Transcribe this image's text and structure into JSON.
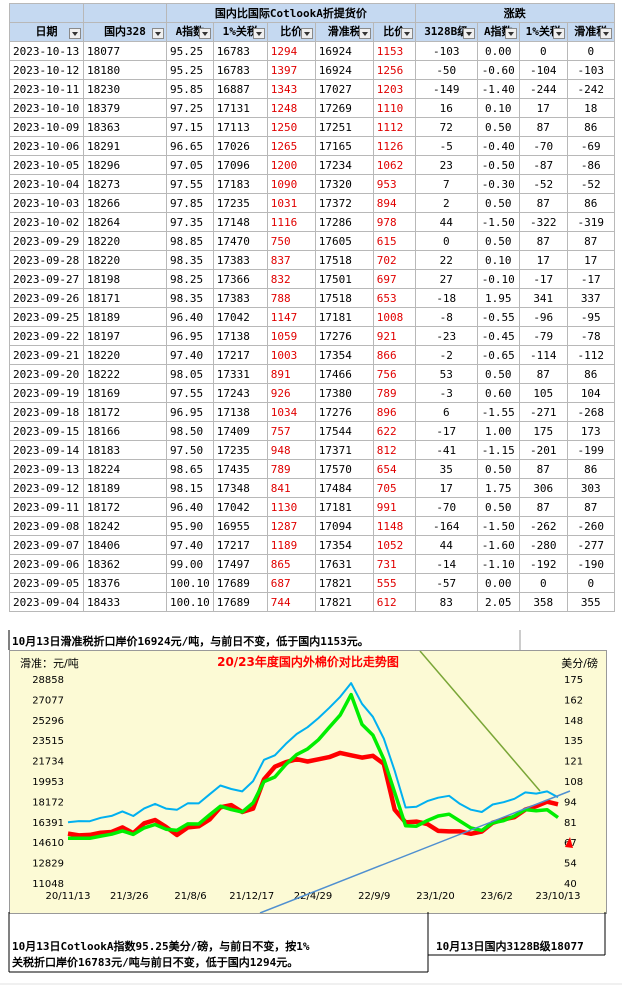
{
  "table": {
    "group_header_1": "国内比国际CotlookA折提货价",
    "group_header_2": "涨跌",
    "columns": [
      "日期",
      "国内328",
      "A指数",
      "1%关税",
      "比价",
      "滑准税",
      "比价",
      "3128B级",
      "A指数",
      "1%关税",
      "滑准税"
    ],
    "rows": [
      [
        "2023-10-13",
        "18077",
        "95.25",
        "16783",
        "1294",
        "16924",
        "1153",
        "-103",
        "0.00",
        "0",
        "0"
      ],
      [
        "2023-10-12",
        "18180",
        "95.25",
        "16783",
        "1397",
        "16924",
        "1256",
        "-50",
        "-0.60",
        "-104",
        "-103"
      ],
      [
        "2023-10-11",
        "18230",
        "95.85",
        "16887",
        "1343",
        "17027",
        "1203",
        "-149",
        "-1.40",
        "-244",
        "-242"
      ],
      [
        "2023-10-10",
        "18379",
        "97.25",
        "17131",
        "1248",
        "17269",
        "1110",
        "16",
        "0.10",
        "17",
        "18"
      ],
      [
        "2023-10-09",
        "18363",
        "97.15",
        "17113",
        "1250",
        "17251",
        "1112",
        "72",
        "0.50",
        "87",
        "86"
      ],
      [
        "2023-10-06",
        "18291",
        "96.65",
        "17026",
        "1265",
        "17165",
        "1126",
        "-5",
        "-0.40",
        "-70",
        "-69"
      ],
      [
        "2023-10-05",
        "18296",
        "97.05",
        "17096",
        "1200",
        "17234",
        "1062",
        "23",
        "-0.50",
        "-87",
        "-86"
      ],
      [
        "2023-10-04",
        "18273",
        "97.55",
        "17183",
        "1090",
        "17320",
        "953",
        "7",
        "-0.30",
        "-52",
        "-52"
      ],
      [
        "2023-10-03",
        "18266",
        "97.85",
        "17235",
        "1031",
        "17372",
        "894",
        "2",
        "0.50",
        "87",
        "86"
      ],
      [
        "2023-10-02",
        "18264",
        "97.35",
        "17148",
        "1116",
        "17286",
        "978",
        "44",
        "-1.50",
        "-322",
        "-319"
      ],
      [
        "2023-09-29",
        "18220",
        "98.85",
        "17470",
        "750",
        "17605",
        "615",
        "0",
        "0.50",
        "87",
        "87"
      ],
      [
        "2023-09-28",
        "18220",
        "98.35",
        "17383",
        "837",
        "17518",
        "702",
        "22",
        "0.10",
        "17",
        "17"
      ],
      [
        "2023-09-27",
        "18198",
        "98.25",
        "17366",
        "832",
        "17501",
        "697",
        "27",
        "-0.10",
        "-17",
        "-17"
      ],
      [
        "2023-09-26",
        "18171",
        "98.35",
        "17383",
        "788",
        "17518",
        "653",
        "-18",
        "1.95",
        "341",
        "337"
      ],
      [
        "2023-09-25",
        "18189",
        "96.40",
        "17042",
        "1147",
        "17181",
        "1008",
        "-8",
        "-0.55",
        "-96",
        "-95"
      ],
      [
        "2023-09-22",
        "18197",
        "96.95",
        "17138",
        "1059",
        "17276",
        "921",
        "-23",
        "-0.45",
        "-79",
        "-78"
      ],
      [
        "2023-09-21",
        "18220",
        "97.40",
        "17217",
        "1003",
        "17354",
        "866",
        "-2",
        "-0.65",
        "-114",
        "-112"
      ],
      [
        "2023-09-20",
        "18222",
        "98.05",
        "17331",
        "891",
        "17466",
        "756",
        "53",
        "0.50",
        "87",
        "86"
      ],
      [
        "2023-09-19",
        "18169",
        "97.55",
        "17243",
        "926",
        "17380",
        "789",
        "-3",
        "0.60",
        "105",
        "104"
      ],
      [
        "2023-09-18",
        "18172",
        "96.95",
        "17138",
        "1034",
        "17276",
        "896",
        "6",
        "-1.55",
        "-271",
        "-268"
      ],
      [
        "2023-09-15",
        "18166",
        "98.50",
        "17409",
        "757",
        "17544",
        "622",
        "-17",
        "1.00",
        "175",
        "173"
      ],
      [
        "2023-09-14",
        "18183",
        "97.50",
        "17235",
        "948",
        "17371",
        "812",
        "-41",
        "-1.15",
        "-201",
        "-199"
      ],
      [
        "2023-09-13",
        "18224",
        "98.65",
        "17435",
        "789",
        "17570",
        "654",
        "35",
        "0.50",
        "87",
        "86"
      ],
      [
        "2023-09-12",
        "18189",
        "98.15",
        "17348",
        "841",
        "17484",
        "705",
        "17",
        "1.75",
        "306",
        "303"
      ],
      [
        "2023-09-11",
        "18172",
        "96.40",
        "17042",
        "1130",
        "17181",
        "991",
        "-70",
        "0.50",
        "87",
        "87"
      ],
      [
        "2023-09-08",
        "18242",
        "95.90",
        "16955",
        "1287",
        "17094",
        "1148",
        "-164",
        "-1.50",
        "-262",
        "-260"
      ],
      [
        "2023-09-07",
        "18406",
        "97.40",
        "17217",
        "1189",
        "17354",
        "1052",
        "44",
        "-1.60",
        "-280",
        "-277"
      ],
      [
        "2023-09-06",
        "18362",
        "99.00",
        "17497",
        "865",
        "17631",
        "731",
        "-14",
        "-1.10",
        "-192",
        "-190"
      ],
      [
        "2023-09-05",
        "18376",
        "100.10",
        "17689",
        "687",
        "17821",
        "555",
        "-57",
        "0.00",
        "0",
        "0"
      ],
      [
        "2023-09-04",
        "18433",
        "100.10",
        "17689",
        "744",
        "17821",
        "612",
        "83",
        "2.05",
        "358",
        "355"
      ]
    ]
  },
  "notes": {
    "top": "10月13日滑准税折口岸价16924元/吨，与前日不变，低于国内1153元。",
    "bottom_left_1": "10月13日CotlookA指数95.25美分/磅，与前日不变，按1%",
    "bottom_left_2": "关税折口岸价16783元/吨与前日不变，低于国内1294元。",
    "bottom_right": "10月13日国内3128B级18077"
  },
  "chart_data": {
    "type": "line",
    "title": "20/23年度国内外棉价对比走势图",
    "ylabel_left": "滑准：元/吨",
    "ylabel_right": "美分/磅",
    "y_left_ticks": [
      "28858",
      "27077",
      "25296",
      "23515",
      "21734",
      "19953",
      "18172",
      "16391",
      "14610",
      "12829",
      "11048"
    ],
    "y_right_ticks": [
      "175",
      "162",
      "148",
      "135",
      "121",
      "108",
      "94",
      "81",
      "67",
      "54",
      "40"
    ],
    "x_ticks": [
      "20/11/13",
      "21/3/26",
      "21/8/6",
      "21/12/17",
      "22/4/29",
      "22/9/9",
      "23/1/20",
      "23/6/2",
      "23/10/13"
    ],
    "ylim_left": [
      11048,
      28858
    ],
    "ylim_right": [
      40,
      175
    ],
    "colors": {
      "red": "#ff0000",
      "green": "#00ee00",
      "blue": "#00b0f0",
      "trend1": "#7aa637",
      "trend2": "#4f8fd0",
      "bg": "#fcfad5"
    },
    "series": [
      {
        "color": "red",
        "values": [
          15200,
          15150,
          15300,
          15600,
          15400,
          15900,
          15500,
          16100,
          16500,
          16000,
          15400,
          15800,
          16000,
          16700,
          17500,
          17800,
          17300,
          17700,
          20000,
          21200,
          21700,
          21700,
          21600,
          21900,
          22200,
          22300,
          22200,
          22100,
          22000,
          21400,
          17500,
          16500,
          16300,
          16200,
          15700,
          15400,
          15500,
          15400,
          15700,
          16200,
          16600,
          16900,
          17300,
          17700,
          18200,
          18080
        ]
      },
      {
        "color": "green",
        "values": [
          14800,
          14900,
          15000,
          15300,
          15200,
          15600,
          15400,
          15700,
          16100,
          15800,
          15800,
          16100,
          16200,
          17100,
          17600,
          17400,
          17300,
          18200,
          19800,
          20300,
          21500,
          22100,
          22700,
          23600,
          24800,
          25600,
          27500,
          25000,
          23800,
          21800,
          19000,
          16200,
          15900,
          16500,
          17000,
          16900,
          16400,
          15900,
          15800,
          16200,
          16500,
          17000,
          17300,
          17300,
          17500,
          16920
        ]
      },
      {
        "color": "blue",
        "values": [
          16200,
          16400,
          16500,
          16900,
          16800,
          17300,
          17000,
          17400,
          17900,
          17600,
          17600,
          17900,
          18000,
          18900,
          19400,
          19200,
          19100,
          20100,
          21700,
          22200,
          23300,
          23900,
          24600,
          25500,
          26500,
          27200,
          28500,
          26800,
          25400,
          23600,
          20900,
          17800,
          17600,
          18200,
          18600,
          18500,
          17900,
          17500,
          17400,
          17800,
          18100,
          18500,
          18800,
          18800,
          19100,
          18700
        ]
      }
    ]
  }
}
